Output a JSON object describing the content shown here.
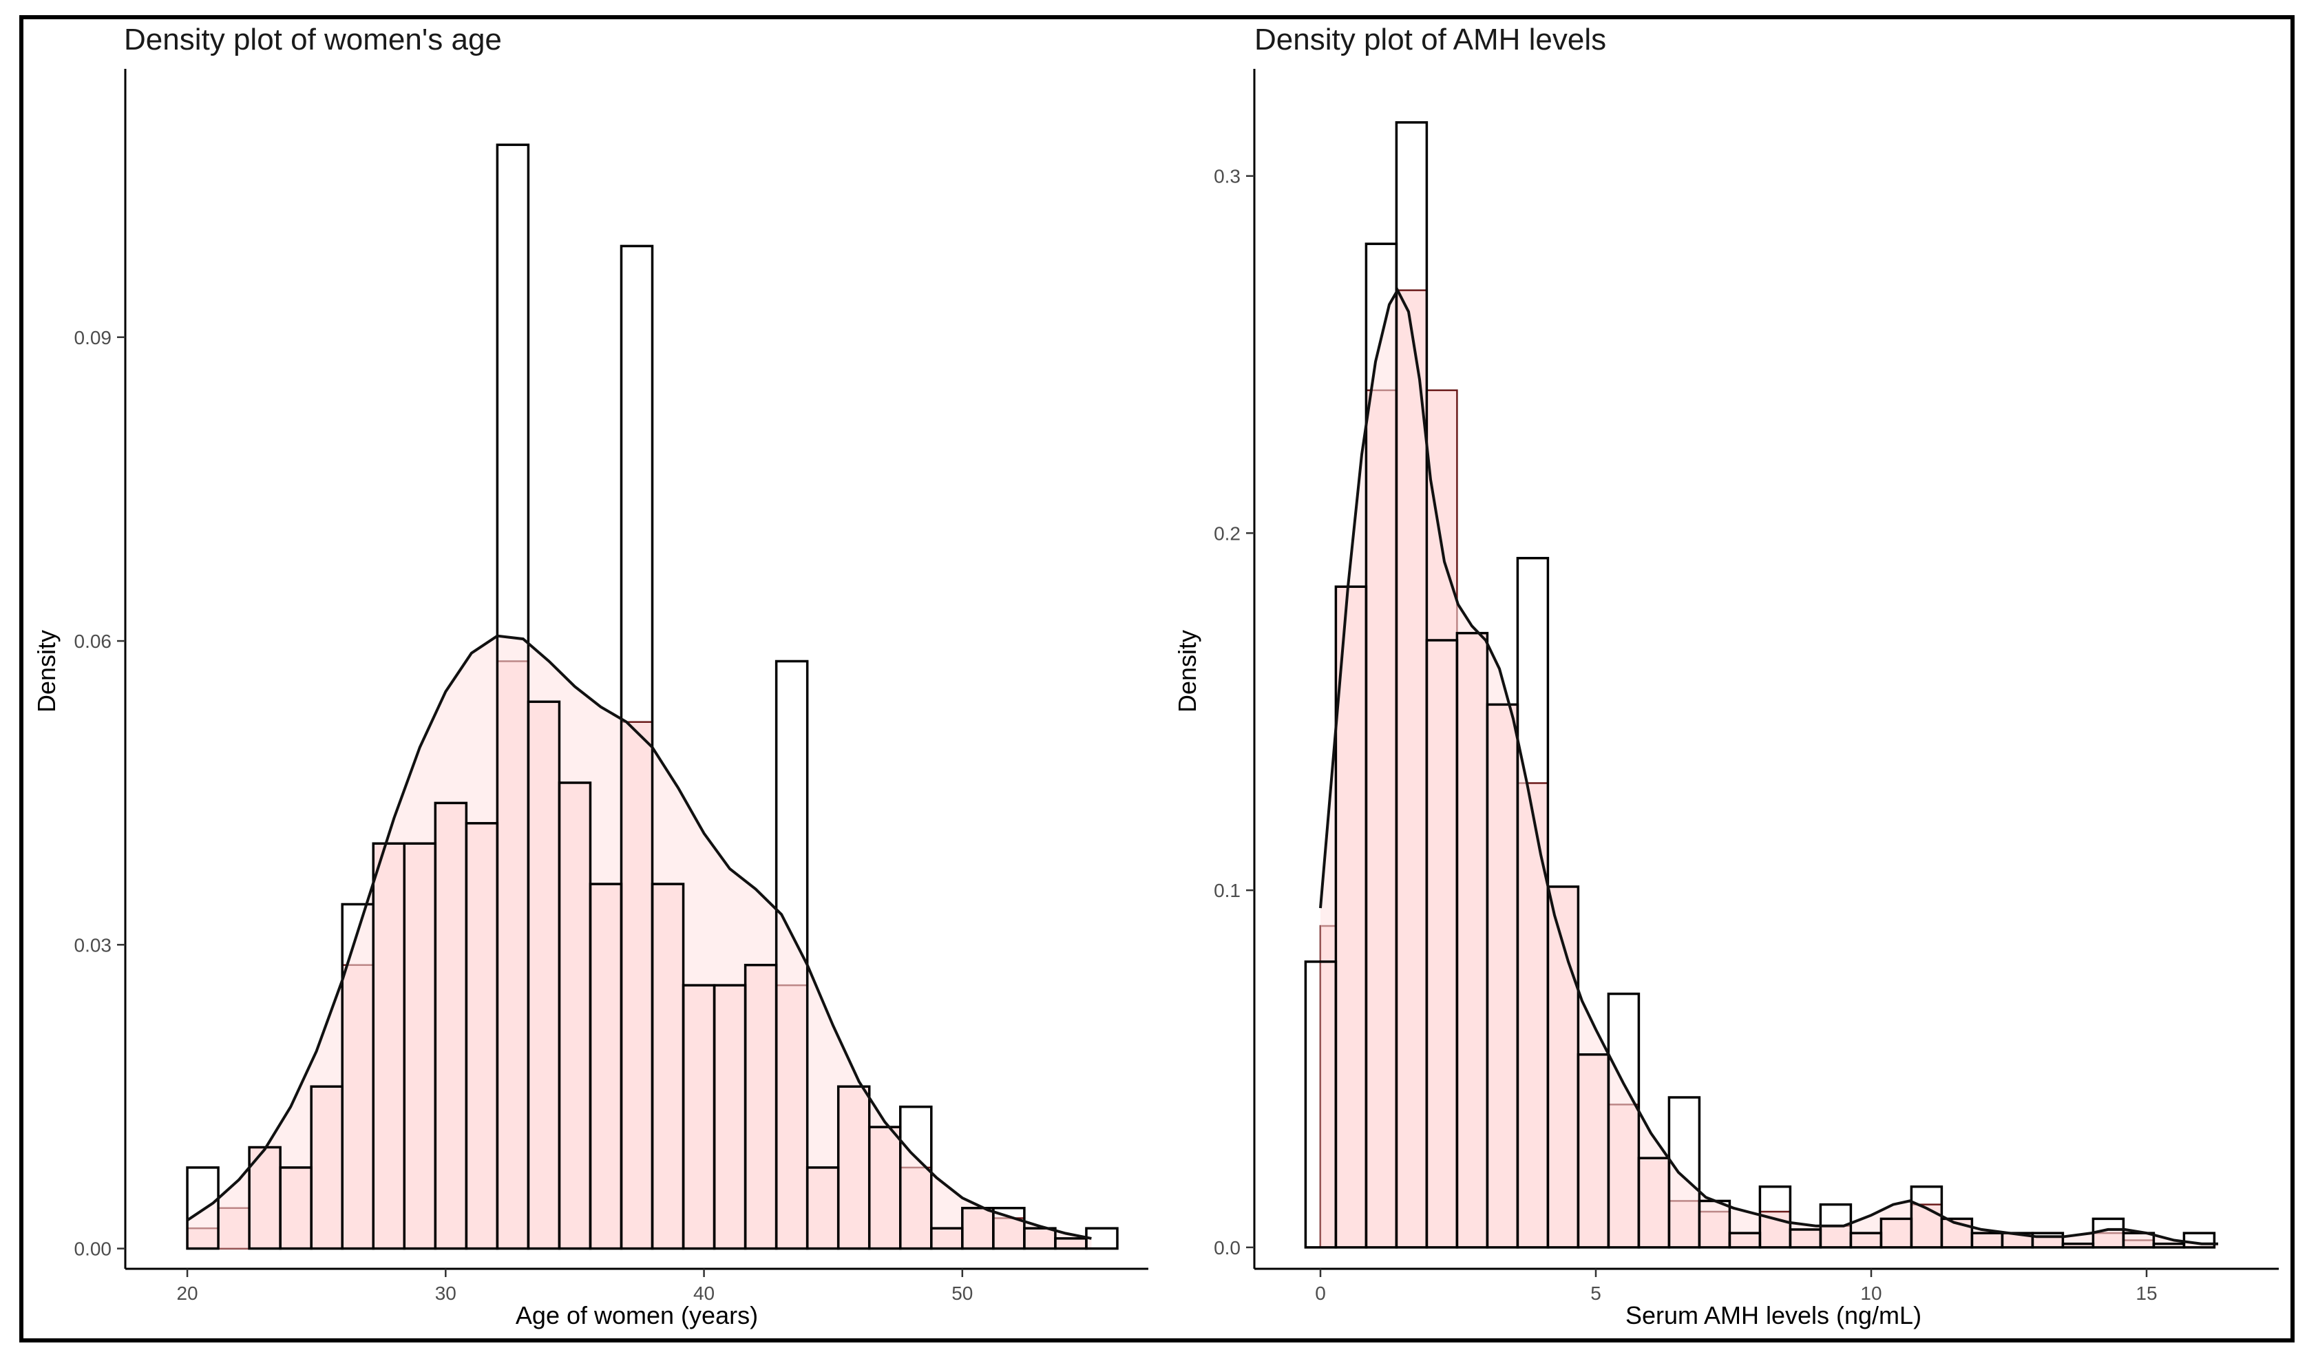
{
  "colors": {
    "fill": "#ffe1e1",
    "fill_stroke": "#6b1a1a",
    "outline": "#000000",
    "axis": "#000000"
  },
  "chart_data": [
    {
      "type": "bar",
      "title": "Density plot of women's age",
      "xlabel": "Age of women (years)",
      "ylabel": "Density",
      "xlim": [
        17.6,
        57.2
      ],
      "ylim": [
        -0.002,
        0.1165
      ],
      "xticks": [
        20,
        30,
        40,
        50
      ],
      "yticks": [
        0.0,
        0.03,
        0.06,
        0.09
      ],
      "ytick_labels": [
        "0.00",
        "0.03",
        "0.06",
        "0.09"
      ],
      "bin_width": 1.2,
      "series": [
        {
          "name": "histogram (all)",
          "x_start": [
            20.0,
            21.2,
            22.4,
            23.6,
            24.8,
            26.0,
            27.2,
            28.4,
            29.6,
            30.8,
            32.0,
            33.2,
            34.4,
            35.6,
            36.8,
            38.0,
            39.2,
            40.4,
            41.6,
            42.8,
            44.0,
            45.2,
            46.4,
            47.6,
            48.8,
            50.0,
            51.2,
            52.4,
            53.6,
            54.8
          ],
          "values": [
            0.008,
            0.0,
            0.01,
            0.008,
            0.016,
            0.034,
            0.04,
            0.04,
            0.044,
            0.042,
            0.109,
            0.054,
            0.046,
            0.036,
            0.099,
            0.036,
            0.026,
            0.026,
            0.028,
            0.058,
            0.008,
            0.016,
            0.012,
            0.014,
            0.002,
            0.004,
            0.004,
            0.002,
            0.001,
            0.002
          ]
        },
        {
          "name": "histogram (filled)",
          "x_start": [
            20.0,
            21.2,
            22.4,
            23.6,
            24.8,
            26.0,
            27.2,
            28.4,
            29.6,
            30.8,
            32.0,
            33.2,
            34.4,
            35.6,
            36.8,
            38.0,
            39.2,
            40.4,
            41.6,
            42.8,
            44.0,
            45.2,
            46.4,
            47.6,
            48.8,
            50.0,
            51.2,
            52.4,
            53.6
          ],
          "values": [
            0.002,
            0.004,
            0.01,
            0.008,
            0.016,
            0.028,
            0.04,
            0.04,
            0.044,
            0.042,
            0.058,
            0.054,
            0.046,
            0.036,
            0.052,
            0.036,
            0.026,
            0.026,
            0.028,
            0.026,
            0.008,
            0.016,
            0.012,
            0.008,
            0.002,
            0.004,
            0.003,
            0.002,
            0.001
          ]
        },
        {
          "name": "density",
          "x": [
            20,
            21,
            22,
            23,
            24,
            25,
            26,
            27,
            28,
            29,
            30,
            31,
            32,
            33,
            34,
            35,
            36,
            37,
            38,
            39,
            40,
            41,
            42,
            43,
            44,
            45,
            46,
            47,
            48,
            49,
            50,
            51,
            52,
            53,
            54,
            55
          ],
          "values": [
            0.0028,
            0.0045,
            0.0068,
            0.0098,
            0.014,
            0.0195,
            0.0265,
            0.0345,
            0.0425,
            0.0495,
            0.055,
            0.0588,
            0.0605,
            0.0602,
            0.058,
            0.0555,
            0.0535,
            0.052,
            0.0495,
            0.0455,
            0.041,
            0.0375,
            0.0355,
            0.033,
            0.028,
            0.022,
            0.0165,
            0.0125,
            0.0095,
            0.007,
            0.005,
            0.0038,
            0.003,
            0.0022,
            0.0015,
            0.001
          ]
        }
      ]
    },
    {
      "type": "bar",
      "title": "Density plot of AMH levels",
      "xlabel": "Serum AMH levels (ng/mL)",
      "ylabel": "Density",
      "xlim": [
        -1.2,
        17.4
      ],
      "ylim": [
        -0.006,
        0.33
      ],
      "xticks": [
        0,
        5,
        10,
        15
      ],
      "yticks": [
        0.0,
        0.1,
        0.2,
        0.3
      ],
      "ytick_labels": [
        "0.0",
        "0.1",
        "0.2",
        "0.3"
      ],
      "bin_width": 0.55,
      "series": [
        {
          "name": "histogram (all)",
          "x_start": [
            -0.27,
            0.28,
            0.83,
            1.38,
            1.93,
            2.48,
            3.03,
            3.58,
            4.13,
            4.68,
            5.23,
            5.78,
            6.33,
            6.88,
            7.43,
            7.98,
            8.53,
            9.08,
            9.63,
            10.18,
            10.73,
            11.28,
            11.83,
            12.38,
            12.93,
            13.48,
            14.03,
            14.58,
            15.13,
            15.68
          ],
          "values": [
            0.08,
            0.185,
            0.281,
            0.315,
            0.17,
            0.172,
            0.152,
            0.193,
            0.101,
            0.054,
            0.071,
            0.025,
            0.042,
            0.013,
            0.004,
            0.017,
            0.005,
            0.012,
            0.004,
            0.008,
            0.017,
            0.008,
            0.004,
            0.004,
            0.004,
            0.001,
            0.008,
            0.004,
            0.001,
            0.004
          ]
        },
        {
          "name": "histogram (filled)",
          "x_start": [
            0.0,
            0.28,
            0.83,
            1.38,
            1.93,
            2.48,
            3.03,
            3.58,
            4.13,
            4.68,
            5.23,
            5.78,
            6.33,
            6.88,
            7.43,
            7.98,
            8.53,
            9.08,
            9.63,
            10.18,
            10.73,
            11.28,
            11.83,
            12.38,
            12.93,
            13.48,
            14.03,
            14.58
          ],
          "values": [
            0.09,
            0.185,
            0.24,
            0.268,
            0.24,
            0.172,
            0.152,
            0.13,
            0.101,
            0.054,
            0.04,
            0.025,
            0.013,
            0.01,
            0.004,
            0.01,
            0.005,
            0.006,
            0.004,
            0.008,
            0.012,
            0.008,
            0.004,
            0.004,
            0.003,
            0.001,
            0.004,
            0.002
          ]
        },
        {
          "name": "density",
          "x": [
            0.0,
            0.25,
            0.5,
            0.75,
            1.0,
            1.25,
            1.4,
            1.6,
            1.8,
            2.0,
            2.25,
            2.5,
            2.75,
            3.0,
            3.25,
            3.5,
            3.75,
            4.0,
            4.25,
            4.5,
            4.75,
            5.0,
            5.5,
            6.0,
            6.5,
            7.0,
            7.5,
            8.0,
            8.5,
            9.0,
            9.5,
            10.0,
            10.4,
            10.7,
            11.0,
            11.5,
            12.0,
            12.5,
            13.0,
            13.5,
            14.0,
            14.3,
            14.6,
            15.0,
            15.5,
            16.0,
            16.3
          ],
          "values": [
            0.095,
            0.14,
            0.185,
            0.222,
            0.248,
            0.264,
            0.268,
            0.262,
            0.243,
            0.215,
            0.192,
            0.18,
            0.174,
            0.17,
            0.162,
            0.148,
            0.13,
            0.11,
            0.093,
            0.08,
            0.069,
            0.061,
            0.046,
            0.032,
            0.021,
            0.014,
            0.011,
            0.009,
            0.007,
            0.006,
            0.006,
            0.009,
            0.012,
            0.013,
            0.011,
            0.007,
            0.005,
            0.004,
            0.003,
            0.003,
            0.004,
            0.005,
            0.005,
            0.004,
            0.002,
            0.001,
            0.001
          ]
        }
      ]
    }
  ]
}
